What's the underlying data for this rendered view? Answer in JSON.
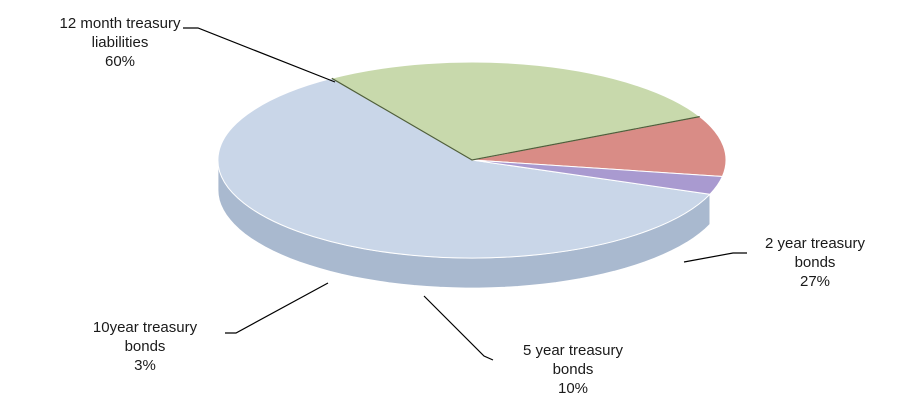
{
  "chart_data": {
    "type": "pie",
    "title": "",
    "slices": [
      {
        "label_lines": [
          "12 month treasury",
          "liabilities"
        ],
        "value": 60,
        "value_text": "60%",
        "color": "#c9d6e8",
        "side": "#a9b9cf"
      },
      {
        "label_lines": [
          "2 year treasury",
          "bonds"
        ],
        "value": 27,
        "value_text": "27%",
        "color": "#c8d9ac",
        "side": "#7f9560"
      },
      {
        "label_lines": [
          "5 year treasury",
          "bonds"
        ],
        "value": 10,
        "value_text": "10%",
        "color": "#d98c86",
        "side": "#b86a64"
      },
      {
        "label_lines": [
          "10year treasury",
          "bonds"
        ],
        "value": 3,
        "value_text": "3%",
        "color": "#a99ad0",
        "side": "#8a7bb5"
      }
    ]
  }
}
